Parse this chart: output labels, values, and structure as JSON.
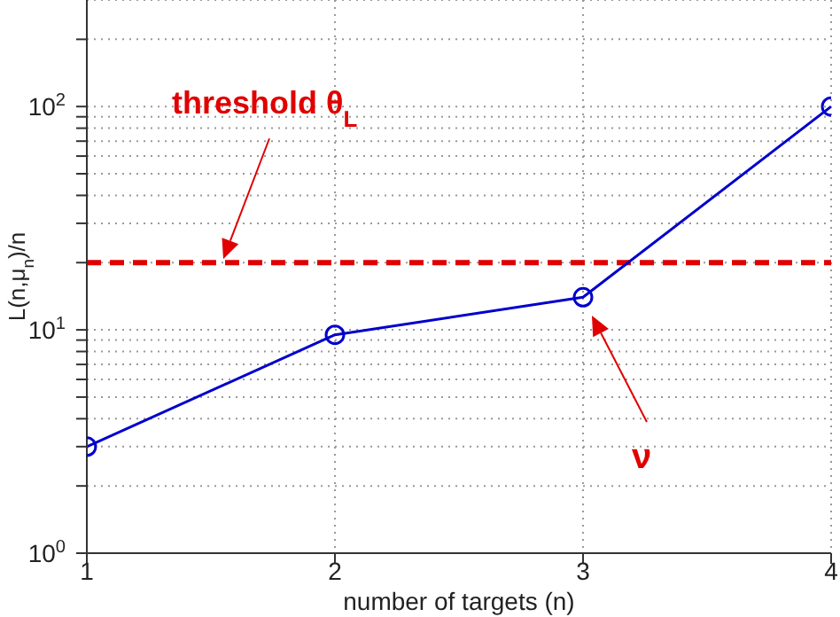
{
  "chart_data": {
    "type": "line",
    "xlabel": "number of targets (n)",
    "ylabel": "L(n,μ$_{n}$)/n",
    "x": [
      1,
      2,
      3,
      4
    ],
    "series": [
      {
        "color": "#0000cc",
        "values": [
          3,
          9.5,
          14,
          100
        ]
      }
    ],
    "marker": "circle",
    "line_style": "solid",
    "log": "y",
    "grid": true,
    "xlim": [
      1,
      4
    ],
    "xticks": [
      1,
      2,
      3,
      4
    ],
    "ylim": [
      1,
      300
    ],
    "yticks": [
      {
        "value": 1,
        "label": "10$^{0}$"
      },
      {
        "value": 2,
        "label": null
      },
      {
        "value": 3,
        "label": null
      },
      {
        "value": 4,
        "label": null
      },
      {
        "value": 5,
        "label": null
      },
      {
        "value": 6,
        "label": null
      },
      {
        "value": 7,
        "label": null
      },
      {
        "value": 8,
        "label": null
      },
      {
        "value": 9,
        "label": null
      },
      {
        "value": 10,
        "label": "10$^{1}$"
      },
      {
        "value": 20,
        "label": null
      },
      {
        "value": 30,
        "label": null
      },
      {
        "value": 40,
        "label": null
      },
      {
        "value": 50,
        "label": null
      },
      {
        "value": 60,
        "label": null
      },
      {
        "value": 70,
        "label": null
      },
      {
        "value": 80,
        "label": null
      },
      {
        "value": 90,
        "label": null
      },
      {
        "value": 100,
        "label": "10$^{2}$"
      },
      {
        "value": 200,
        "label": null
      }
    ],
    "ref_lines": [
      {
        "axis": "y",
        "value": 20,
        "label": "threshold θ$_{L}$",
        "color": "#e00000",
        "line_style": "dashed"
      }
    ],
    "annotations": [
      "ν"
    ]
  }
}
